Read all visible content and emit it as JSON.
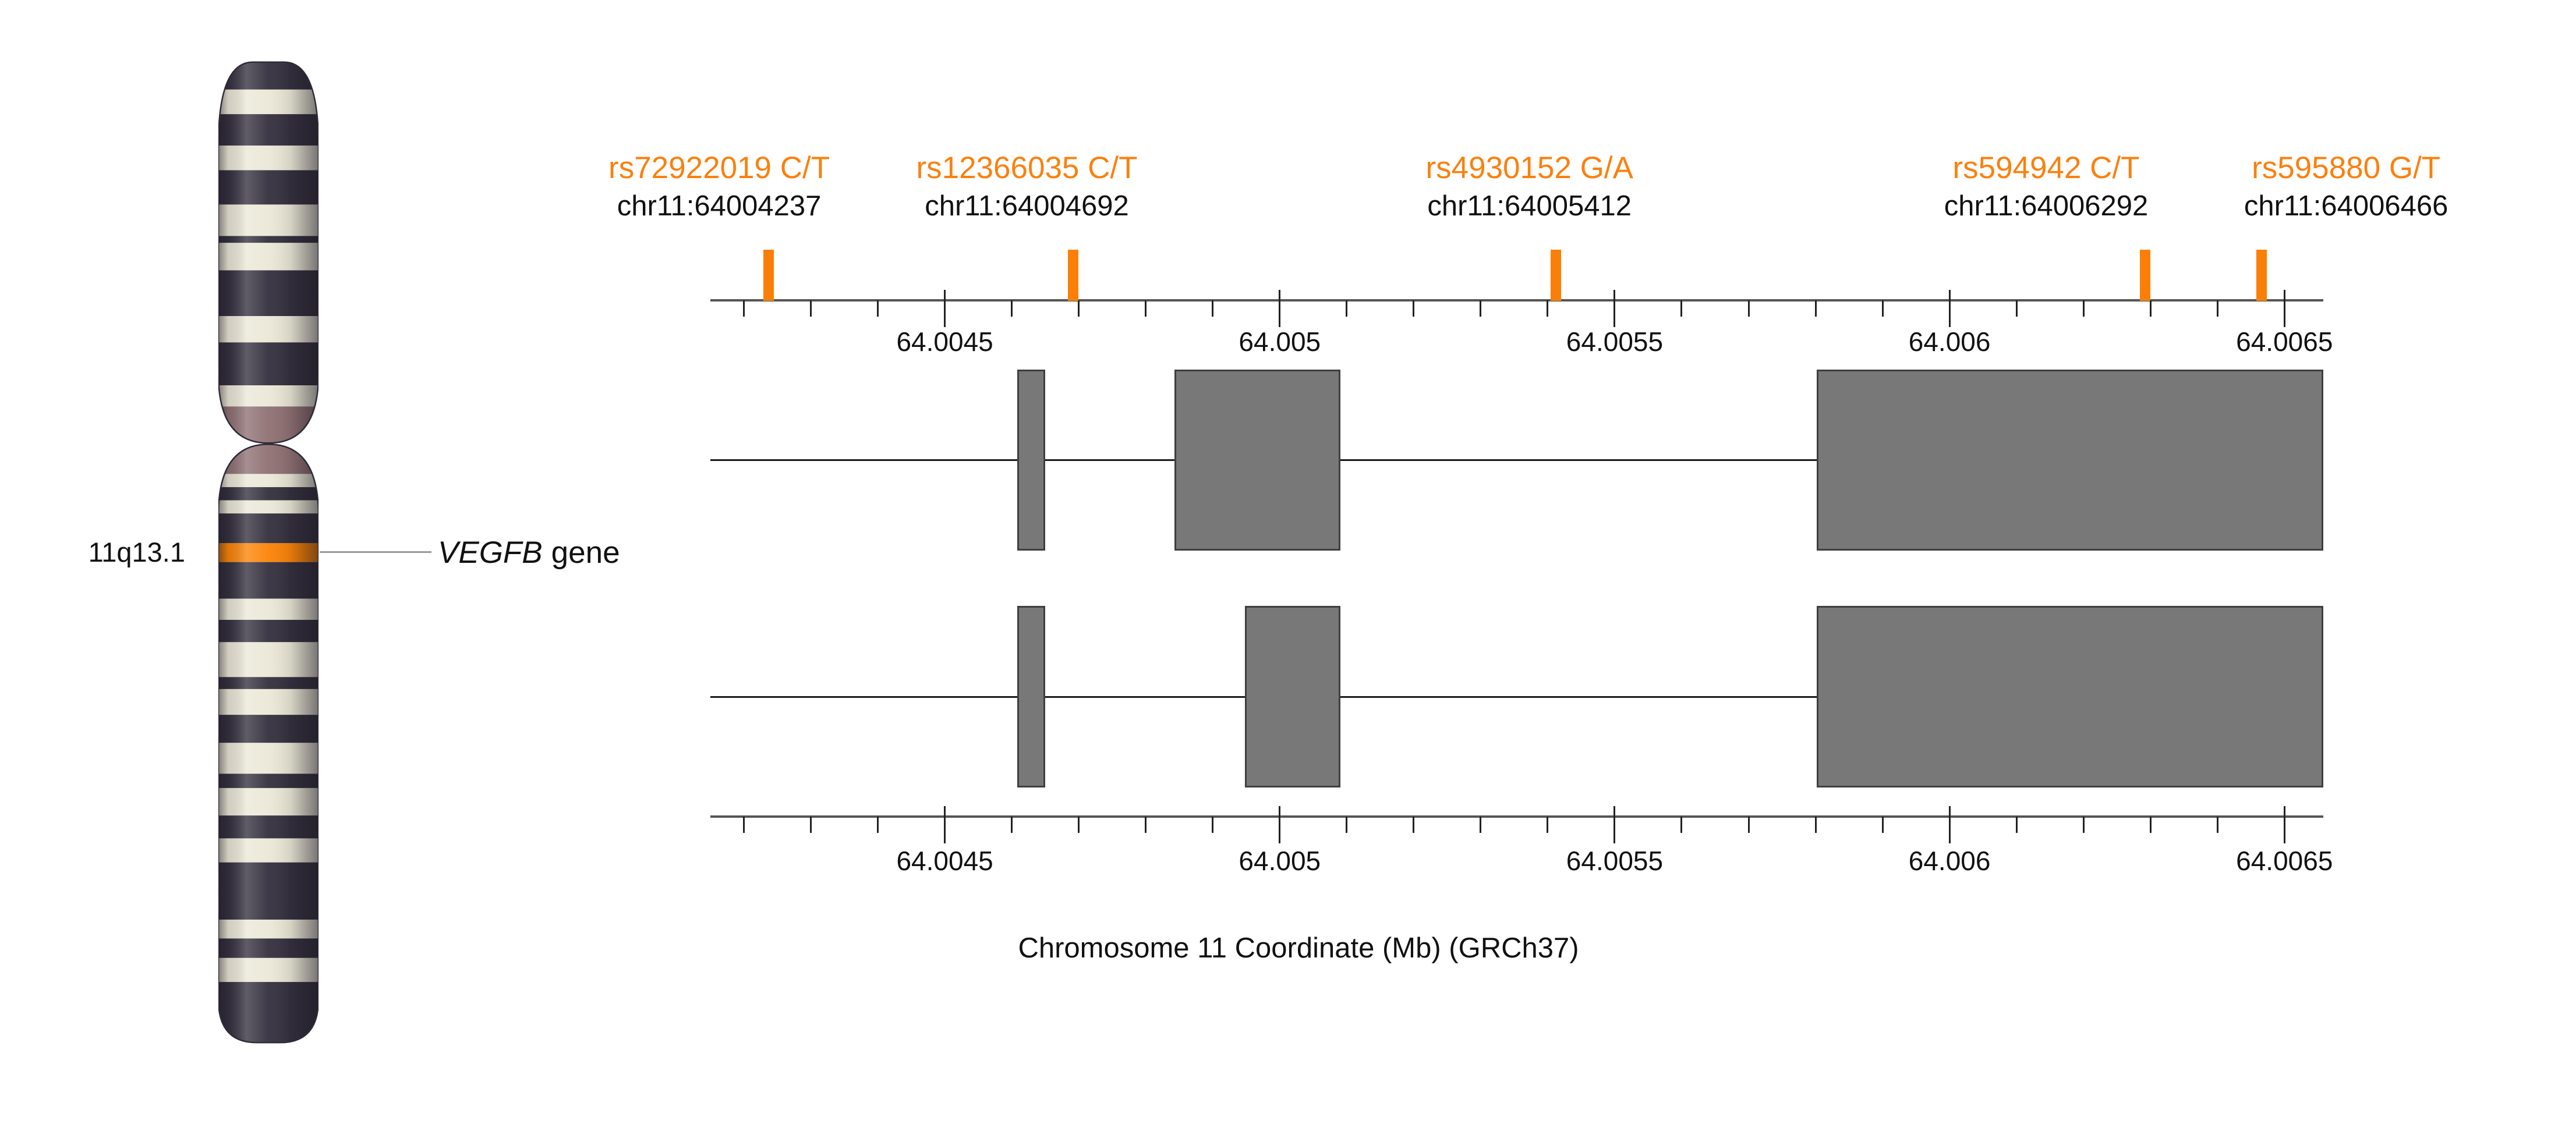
{
  "ideogram": {
    "band_label": "11q13.1",
    "gene_symbol": "VEGFB",
    "gene_word": "gene",
    "colors": {
      "dark": "#332f3d",
      "cream": "#ebe8d7",
      "mauve": "#8e7072",
      "highlight": "#fb8306",
      "outline": "#2e2a38"
    },
    "p_arm_bands": [
      [
        "dark",
        0,
        48
      ],
      [
        "cream",
        48,
        91
      ],
      [
        "dark",
        91,
        146
      ],
      [
        "cream",
        146,
        189
      ],
      [
        "dark",
        189,
        249
      ],
      [
        "cream",
        249,
        304
      ],
      [
        "dark",
        304,
        316
      ],
      [
        "cream",
        316,
        364
      ],
      [
        "dark",
        364,
        444
      ],
      [
        "cream",
        444,
        490
      ],
      [
        "dark",
        490,
        565
      ],
      [
        "cream",
        565,
        602
      ],
      [
        "mauve",
        602,
        666
      ]
    ],
    "q_arm_bands": [
      [
        "mauve",
        668,
        720
      ],
      [
        "cream",
        720,
        743
      ],
      [
        "dark",
        743,
        766
      ],
      [
        "cream",
        766,
        789
      ],
      [
        "dark",
        789,
        841
      ],
      [
        "highlight",
        841,
        874
      ],
      [
        "dark",
        874,
        938
      ],
      [
        "cream",
        938,
        975
      ],
      [
        "dark",
        975,
        1014
      ],
      [
        "cream",
        1014,
        1075
      ],
      [
        "dark",
        1075,
        1096
      ],
      [
        "cream",
        1096,
        1141
      ],
      [
        "dark",
        1141,
        1190
      ],
      [
        "cream",
        1190,
        1244
      ],
      [
        "dark",
        1244,
        1269
      ],
      [
        "cream",
        1269,
        1317
      ],
      [
        "dark",
        1317,
        1357
      ],
      [
        "cream",
        1357,
        1399
      ],
      [
        "dark",
        1399,
        1499
      ],
      [
        "cream",
        1499,
        1532
      ],
      [
        "dark",
        1532,
        1566
      ],
      [
        "cream",
        1566,
        1608
      ],
      [
        "dark",
        1608,
        1714
      ]
    ]
  },
  "chart_data": {
    "type": "genome-track",
    "xlabel": "Chromosome 11 Coordinate (Mb) (GRCh37)",
    "x_axis": {
      "min_mb": 64.00415,
      "max_mb": 64.006558,
      "major_ticks_mb": [
        64.0045,
        64.005,
        64.0055,
        64.006,
        64.0065
      ],
      "major_tick_labels": [
        "64.0045",
        "64.005",
        "64.0055",
        "64.006",
        "64.0065"
      ],
      "minor_tick_interval_mb": 0.0001,
      "axes_shown": [
        "top",
        "bottom"
      ]
    },
    "snps": [
      {
        "rsid": "rs72922019",
        "alleles": "C/T",
        "position_label": "chr11:64004237",
        "position_mb": 64.004237,
        "label_dx": -85
      },
      {
        "rsid": "rs12366035",
        "alleles": "C/T",
        "position_label": "chr11:64004692",
        "position_mb": 64.004692,
        "label_dx": -80
      },
      {
        "rsid": "rs4930152",
        "alleles": "G/A",
        "position_label": "chr11:64005412",
        "position_mb": 64.005412,
        "label_dx": -45
      },
      {
        "rsid": "rs594942",
        "alleles": "C/T",
        "position_label": "chr11:64006292",
        "position_mb": 64.006292,
        "label_dx": -170
      },
      {
        "rsid": "rs595880",
        "alleles": "G/T",
        "position_label": "chr11:64006466",
        "position_mb": 64.006466,
        "label_dx": 145
      }
    ],
    "transcripts": [
      {
        "line_mb": [
          64.00415,
          64.006558
        ],
        "exons_mb": [
          [
            64.004608,
            64.00465
          ],
          [
            64.004843,
            64.005091
          ],
          [
            64.005802,
            64.006558
          ]
        ]
      },
      {
        "line_mb": [
          64.00415,
          64.006558
        ],
        "exons_mb": [
          [
            64.004608,
            64.00465
          ],
          [
            64.004948,
            64.005091
          ],
          [
            64.005802,
            64.006558
          ]
        ]
      }
    ],
    "styles": {
      "exon_fill": "#787878",
      "exon_border": "#3f3f3f",
      "intron_line": "#1a1a1a",
      "axis_line": "#555555",
      "tick": "#222222",
      "snp_marker": "#fa7f08",
      "snp_text": "#fb800d",
      "text": "#111111"
    }
  }
}
